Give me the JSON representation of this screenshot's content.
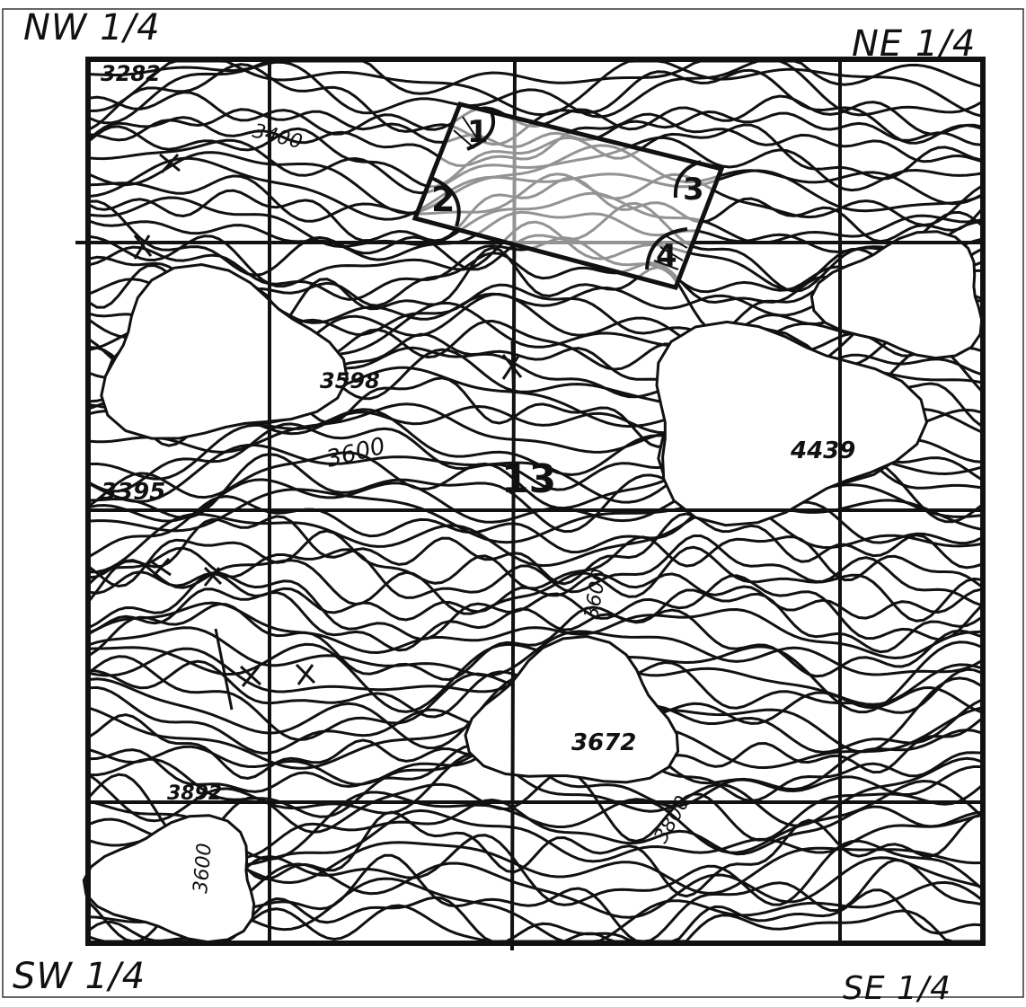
{
  "quarters": {
    "nw": "NW 1/4",
    "ne": "NE 1/4",
    "sw": "SW 1/4",
    "se": "SE 1/4"
  },
  "elevations": [
    {
      "id": "elev-3282",
      "text": "3282"
    },
    {
      "id": "elev-3400",
      "text": "3400"
    },
    {
      "id": "elev-3598",
      "text": "3598"
    },
    {
      "id": "elev-3600",
      "text": "3600"
    },
    {
      "id": "elev-3395",
      "text": "3395"
    },
    {
      "id": "elev-4439",
      "text": "4439"
    },
    {
      "id": "elev-3600-se",
      "text": "3600"
    },
    {
      "id": "elev-3672",
      "text": "3672"
    },
    {
      "id": "elev-3892",
      "text": "3892"
    },
    {
      "id": "elev-3600-sw",
      "text": "3600"
    },
    {
      "id": "elev-3800",
      "text": "3800"
    }
  ],
  "parcel": {
    "corners": [
      "1",
      "2",
      "3",
      "4"
    ]
  },
  "section_number": "13",
  "colors": {
    "ink": "#111111",
    "paper": "#ffffff"
  }
}
